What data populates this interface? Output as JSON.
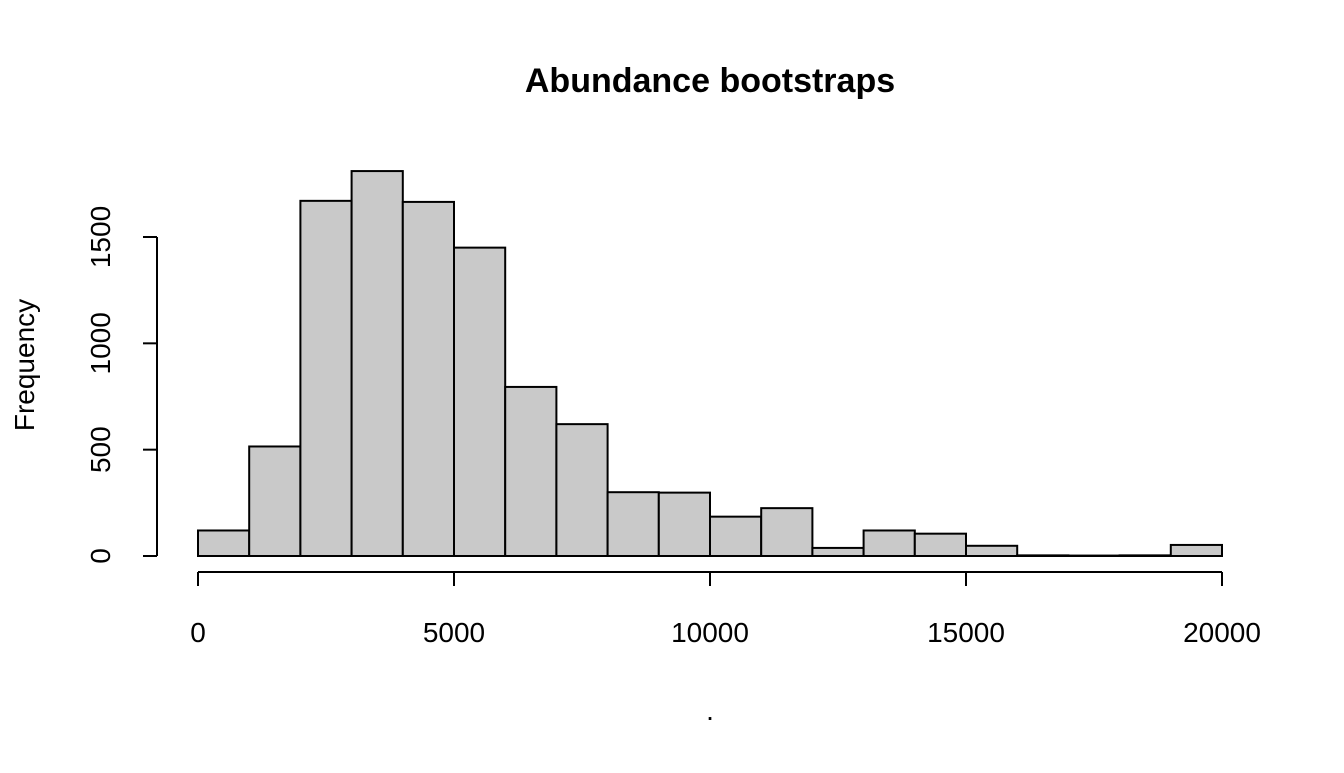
{
  "chart_data": {
    "type": "bar",
    "title": "Abundance bootstraps",
    "xlabel": ".",
    "ylabel": "Frequency",
    "bin_edges": [
      0,
      1000,
      2000,
      3000,
      4000,
      5000,
      6000,
      7000,
      8000,
      9000,
      10000,
      11000,
      12000,
      13000,
      14000,
      15000,
      16000,
      17000,
      18000,
      19000,
      20000
    ],
    "values": [
      120,
      515,
      1670,
      1810,
      1665,
      1450,
      795,
      620,
      300,
      298,
      185,
      225,
      38,
      120,
      105,
      48,
      3,
      2,
      3,
      52
    ],
    "xlim": [
      0,
      20000
    ],
    "ylim": [
      0,
      1500
    ],
    "x_ticks": [
      0,
      5000,
      10000,
      15000,
      20000
    ],
    "x_tick_labels": [
      "0",
      "5000",
      "10000",
      "15000",
      "20000"
    ],
    "y_ticks": [
      0,
      500,
      1000,
      1500
    ],
    "y_tick_labels": [
      "0",
      "500",
      "1000",
      "1500"
    ],
    "grid": false,
    "bar_fill": "#c9c9c9",
    "bar_stroke": "#000000"
  }
}
